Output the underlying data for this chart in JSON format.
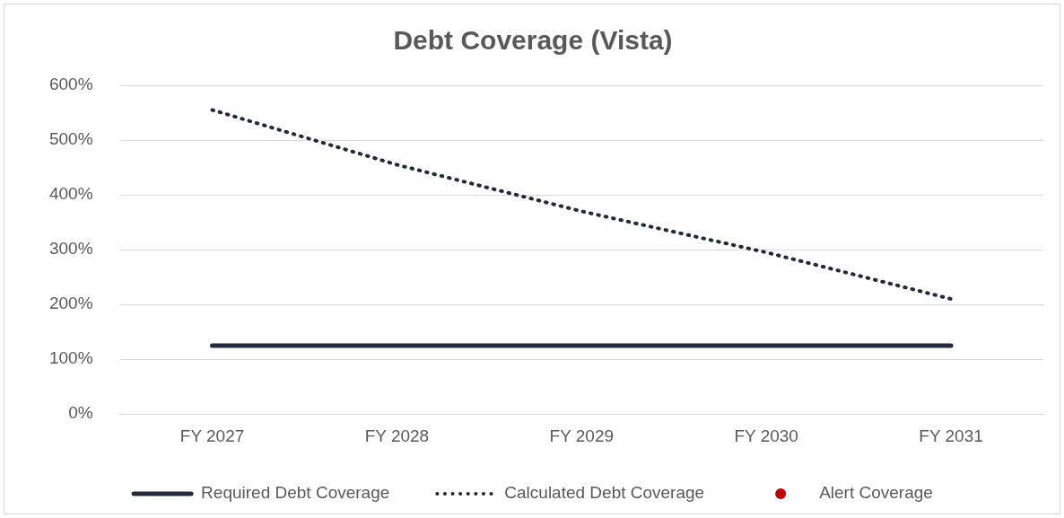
{
  "chart_data": {
    "type": "line",
    "title": "Debt Coverage (Vista)",
    "categories": [
      "FY 2027",
      "FY 2028",
      "FY 2029",
      "FY 2030",
      "FY 2031"
    ],
    "series": [
      {
        "name": "Required Debt Coverage",
        "color": "#222a3a",
        "line_style": "solid",
        "marker": "none",
        "values": [
          125,
          125,
          125,
          125,
          125
        ]
      },
      {
        "name": "Calculated Debt Coverage",
        "color": "#222a3a",
        "line_style": "dotted",
        "marker": "none",
        "values": [
          555,
          455,
          370,
          295,
          210
        ]
      },
      {
        "name": "Alert Coverage",
        "type": "scatter",
        "color": "#c00000",
        "marker": "circle",
        "values": [
          null,
          null,
          null,
          null,
          null
        ]
      }
    ],
    "ylim": [
      0,
      600
    ],
    "yticks": [
      {
        "value": 0,
        "label": "0%"
      },
      {
        "value": 100,
        "label": "100%"
      },
      {
        "value": 200,
        "label": "200%"
      },
      {
        "value": 300,
        "label": "300%"
      },
      {
        "value": 400,
        "label": "400%"
      },
      {
        "value": 500,
        "label": "500%"
      },
      {
        "value": 600,
        "label": "600%"
      }
    ],
    "grid": "y",
    "legend": "bottom"
  }
}
